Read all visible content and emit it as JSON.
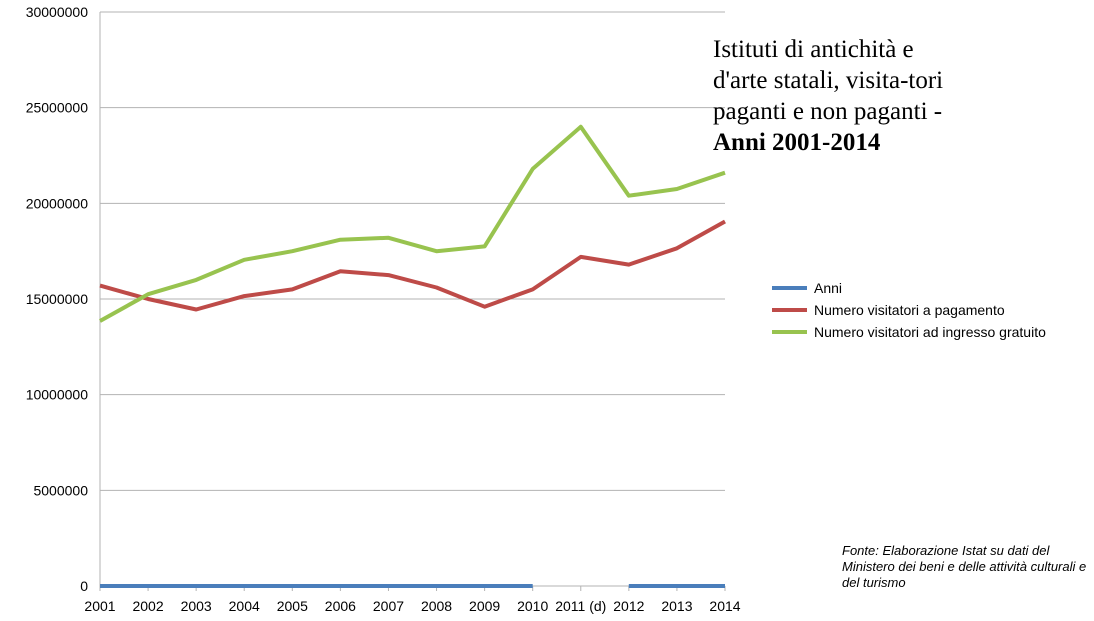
{
  "chart_data": {
    "type": "line",
    "title_main": "Istituti di antichità e d'arte statali, visita-tori paganti e non paganti - ",
    "title_bold": "Anni 2001-2014",
    "source": "Fonte: Elaborazione Istat su dati del Ministero dei beni e delle attività culturali e del turismo",
    "categories": [
      "2001",
      "2002",
      "2003",
      "2004",
      "2005",
      "2006",
      "2007",
      "2008",
      "2009",
      "2010",
      "2011 (d)",
      "2012",
      "2013",
      "2014"
    ],
    "ylim": [
      0,
      30000000
    ],
    "yticks": [
      "0",
      "5000000",
      "10000000",
      "15000000",
      "20000000",
      "25000000",
      "30000000"
    ],
    "grid": true,
    "legend_position": "right",
    "series": [
      {
        "name": "Anni",
        "color": "#4a7ebb",
        "values": [
          0,
          0,
          0,
          0,
          0,
          0,
          0,
          0,
          0,
          0,
          null,
          0,
          0,
          0
        ]
      },
      {
        "name": "Numero visitatori a pagamento",
        "color": "#be4b48",
        "values": [
          15700000,
          15000000,
          14450000,
          15150000,
          15500000,
          16450000,
          16250000,
          15600000,
          14600000,
          15500000,
          17200000,
          16800000,
          17650000,
          19050000
        ]
      },
      {
        "name": "Numero visitatori ad ingresso gratuito",
        "color": "#98c34f",
        "values": [
          13850000,
          15250000,
          16000000,
          17050000,
          17500000,
          18100000,
          18200000,
          17500000,
          17750000,
          21800000,
          24000000,
          20400000,
          20750000,
          21600000
        ]
      }
    ]
  }
}
